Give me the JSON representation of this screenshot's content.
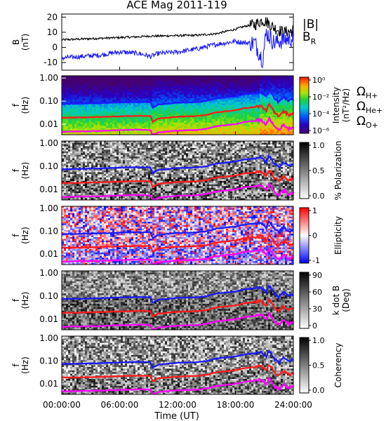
{
  "title": "ACE Mag 2011-119",
  "colors": {
    "black": "#000000",
    "blue": "#1a1aff",
    "red": "#ff1a1a",
    "magenta": "#ff00ff"
  },
  "chart_data": [
    {
      "type": "line",
      "panel": "field",
      "ylabel": "B (nT)",
      "ylim": [
        -15,
        22
      ],
      "yticks": [
        -10,
        0,
        10,
        20
      ],
      "x_hours": [
        0,
        2,
        4,
        6,
        8,
        9.2,
        10,
        12,
        14,
        16,
        18,
        19,
        20,
        20.8,
        21.2,
        22,
        23,
        24
      ],
      "series": [
        {
          "name": "|B|",
          "color": "#000000",
          "values": [
            5,
            5.5,
            6,
            6.5,
            7,
            7.5,
            7.5,
            7.8,
            8,
            9,
            12,
            14,
            15,
            18,
            17,
            13,
            10,
            11
          ]
        },
        {
          "name": "B_R",
          "color": "#1a1aff",
          "values": [
            -7,
            -6,
            -5,
            -3,
            -4,
            -6,
            -4,
            -3,
            -1,
            2,
            4,
            3,
            3,
            -8,
            10,
            3,
            5,
            6
          ]
        }
      ]
    },
    {
      "type": "heatmap",
      "panel": "intensity",
      "ylabel": "f (Hz)",
      "ylim": [
        0.0035,
        1.25
      ],
      "yscale": "log",
      "yticks": [
        "1.00",
        "0.10",
        "0.01"
      ],
      "colorbar": {
        "label": "Intensity (nT²/Hz)",
        "ticks": [
          "10⁰",
          "10⁻²",
          "10⁻⁴",
          "10⁻⁶"
        ],
        "scale": "rainbow"
      },
      "legend": [
        "ΩH+",
        "ΩHe+",
        "ΩO+"
      ]
    },
    {
      "type": "heatmap",
      "panel": "polarization",
      "ylabel": "f (Hz)",
      "ylim": [
        0.0035,
        1.25
      ],
      "yscale": "log",
      "yticks": [
        "1.00",
        "0.10",
        "0.01"
      ],
      "colorbar": {
        "label": "% Polarization",
        "ticks": [
          "1.0",
          "0.5",
          "0.0"
        ],
        "scale": "gray_rev"
      }
    },
    {
      "type": "heatmap",
      "panel": "ellipticity",
      "ylabel": "f (Hz)",
      "ylim": [
        0.0035,
        1.25
      ],
      "yscale": "log",
      "yticks": [
        "1.00",
        "0.10",
        "0.01"
      ],
      "colorbar": {
        "label": "Ellipticity",
        "ticks": [
          "1",
          "0",
          "-1"
        ],
        "scale": "bwr"
      }
    },
    {
      "type": "heatmap",
      "panel": "kdotb",
      "ylabel": "f (Hz)",
      "ylim": [
        0.0035,
        1.25
      ],
      "yscale": "log",
      "yticks": [
        "1.00",
        "0.10",
        "0.01"
      ],
      "colorbar": {
        "label": "k dot B (Deg)",
        "ticks": [
          "90",
          "60",
          "30",
          "0"
        ],
        "scale": "gray_rev"
      }
    },
    {
      "type": "heatmap",
      "panel": "coherency",
      "ylabel": "f (Hz)",
      "ylim": [
        0.0035,
        1.25
      ],
      "yscale": "log",
      "yticks": [
        "1.00",
        "0.10",
        "0.01"
      ],
      "colorbar": {
        "label": "Coherency",
        "ticks": [
          "1.0",
          "0.5",
          "0.0"
        ],
        "scale": "gray_rev"
      }
    }
  ],
  "gyro_lines": {
    "x_hours": [
      0,
      2,
      4,
      6,
      8,
      9.2,
      9.4,
      10,
      12,
      14,
      15,
      16,
      18,
      19,
      20,
      20.6,
      20.9,
      21.2,
      21.5,
      22,
      22.5,
      23,
      23.5,
      24
    ],
    "H+": [
      0.075,
      0.078,
      0.082,
      0.088,
      0.092,
      0.09,
      0.05,
      0.07,
      0.085,
      0.09,
      0.1,
      0.13,
      0.16,
      0.2,
      0.22,
      0.25,
      0.2,
      0.15,
      0.28,
      0.13,
      0.09,
      0.15,
      0.1,
      0.12
    ],
    "He+": [
      0.019,
      0.0195,
      0.0205,
      0.022,
      0.023,
      0.0225,
      0.0125,
      0.0175,
      0.021,
      0.0225,
      0.025,
      0.0325,
      0.04,
      0.05,
      0.055,
      0.0625,
      0.05,
      0.0375,
      0.07,
      0.0325,
      0.0225,
      0.0375,
      0.025,
      0.03
    ],
    "O+": [
      0.0047,
      0.0049,
      0.0051,
      0.0055,
      0.0058,
      0.0056,
      0.0031,
      0.0044,
      0.0053,
      0.0056,
      0.0063,
      0.0081,
      0.01,
      0.0125,
      0.0138,
      0.0156,
      0.0125,
      0.0094,
      0.0175,
      0.0081,
      0.0056,
      0.0094,
      0.0063,
      0.0075
    ]
  },
  "xaxis": {
    "ticks": [
      "00:00:00",
      "06:00:00",
      "12:00:00",
      "18:00:00",
      "24:00:00"
    ],
    "tick_hours": [
      0,
      6,
      12,
      18,
      24
    ],
    "label": "Time (UT)"
  },
  "field_legend": {
    "b_mag": "|B|",
    "b_r": "B",
    "b_r_sub": "R"
  },
  "ion_legend": [
    {
      "sym": "Ω",
      "sub": "H+",
      "color": "#1a1aff"
    },
    {
      "sym": "Ω",
      "sub": "He+",
      "color": "#ff1a1a"
    },
    {
      "sym": "Ω",
      "sub": "O+",
      "color": "#ff00ff"
    }
  ]
}
